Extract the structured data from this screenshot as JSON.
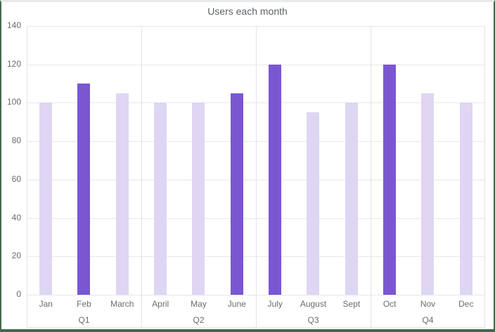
{
  "colors": {
    "bar_accent": "#7a57d1",
    "bar_muted": "#ded6f3",
    "gridline": "#e8e8e8",
    "separator": "#e4e4e4",
    "axis_text": "#6b6b6b",
    "title_text": "#5f6368",
    "frame_border": "#44694d",
    "frame_top_border": "#e9e9e9",
    "background": "#ffffff"
  },
  "chart_data": {
    "type": "bar",
    "title": "Users each month",
    "xlabel": "",
    "ylabel": "",
    "ylim": [
      0,
      140
    ],
    "yticks": [
      0,
      20,
      40,
      60,
      80,
      100,
      120,
      140
    ],
    "grid": true,
    "legend": "none",
    "categories": [
      "Jan",
      "Feb",
      "March",
      "April",
      "May",
      "June",
      "July",
      "August",
      "Sept",
      "Oct",
      "Nov",
      "Dec"
    ],
    "values": [
      100,
      110,
      105,
      100,
      100,
      105,
      120,
      95,
      100,
      120,
      105,
      100
    ],
    "highlighted": [
      false,
      true,
      false,
      false,
      false,
      true,
      true,
      false,
      false,
      true,
      false,
      false
    ],
    "groups": [
      {
        "label": "Q1",
        "category_indexes": [
          0,
          1,
          2
        ]
      },
      {
        "label": "Q2",
        "category_indexes": [
          3,
          4,
          5
        ]
      },
      {
        "label": "Q3",
        "category_indexes": [
          6,
          7,
          8
        ]
      },
      {
        "label": "Q4",
        "category_indexes": [
          9,
          10,
          11
        ]
      }
    ]
  }
}
